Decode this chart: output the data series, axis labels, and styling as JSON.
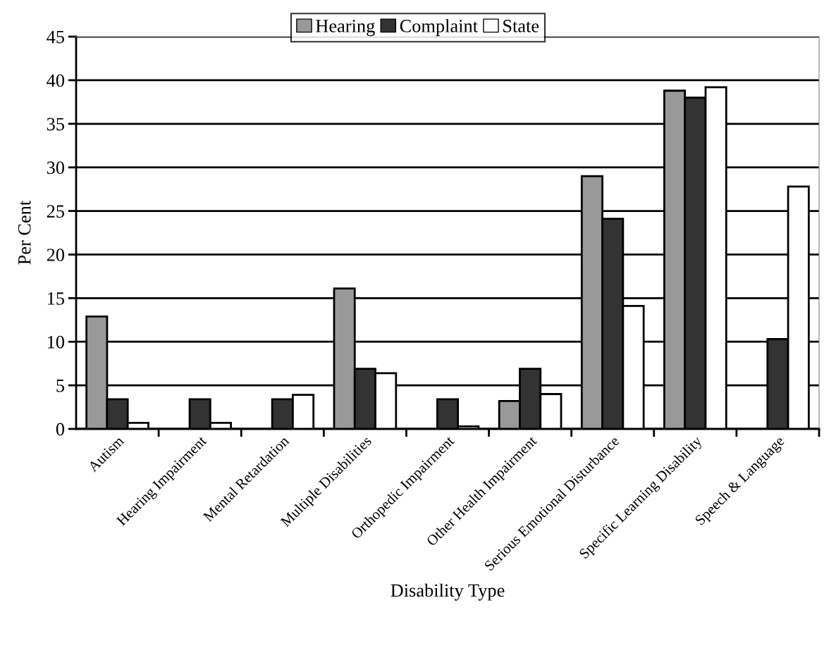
{
  "chart_data": {
    "type": "bar",
    "xlabel": "Disability Type",
    "ylabel": "Per Cent",
    "categories": [
      "Autism",
      "Hearing Impairment",
      "Mental Retardation",
      "Multiple Disabilities",
      "Orthopedic Impairment",
      "Other Health Impairment",
      "Serious Emotional Disturbance",
      "Specific Learning Disability",
      "Speech & Language"
    ],
    "series": [
      {
        "name": "Hearing",
        "color": "#999999",
        "values": [
          12.9,
          null,
          null,
          16.1,
          null,
          3.2,
          29.0,
          38.8,
          null
        ]
      },
      {
        "name": "Complaint",
        "color": "#333333",
        "values": [
          3.4,
          3.4,
          3.4,
          6.9,
          3.4,
          6.9,
          24.1,
          38.0,
          10.3
        ]
      },
      {
        "name": "State",
        "color": "#ffffff",
        "values": [
          0.7,
          0.7,
          3.9,
          6.4,
          0.3,
          4.0,
          14.1,
          39.2,
          27.8
        ]
      }
    ],
    "ylim": [
      0,
      45
    ],
    "yticks": [
      0,
      5,
      10,
      15,
      20,
      25,
      30,
      35,
      40,
      45
    ],
    "grid": "y",
    "legend": "top"
  }
}
